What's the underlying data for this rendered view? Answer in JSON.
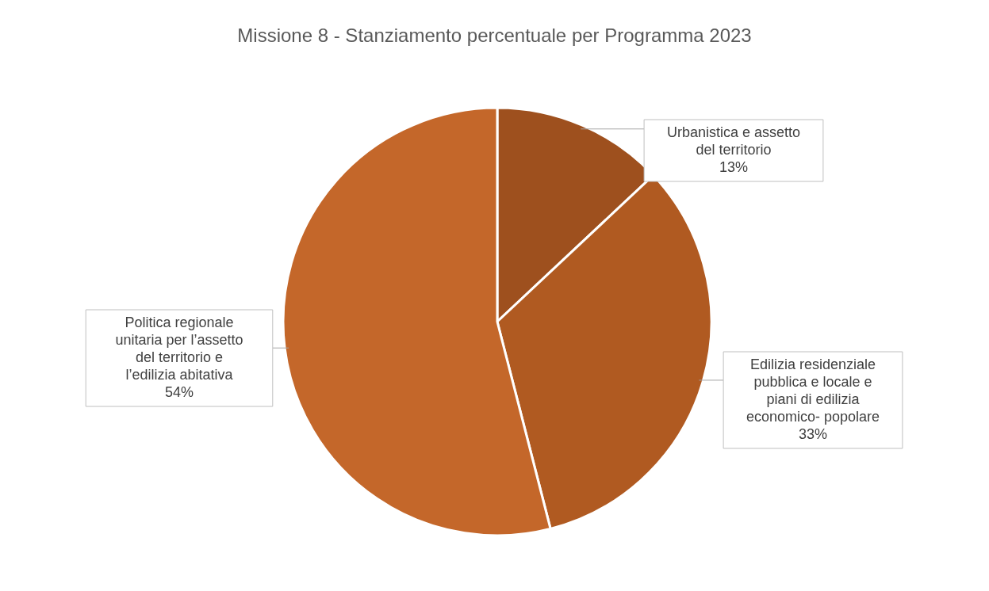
{
  "chart_data": {
    "type": "pie",
    "title": "Missione 8 - Stanziamento percentuale per Programma 2023",
    "categories": [
      "Urbanistica e assetto del territorio",
      "Edilizia residenziale pubblica e locale e piani di edilizia economico- popolare",
      "Politica regionale unitaria per l’assetto del territorio e l’edilizia abitativa"
    ],
    "values": [
      13,
      33,
      54
    ],
    "value_labels": [
      "13%",
      "33%",
      "54%"
    ],
    "colors": [
      "#9e501e",
      "#b05a21",
      "#c4672a"
    ],
    "legend": false
  }
}
